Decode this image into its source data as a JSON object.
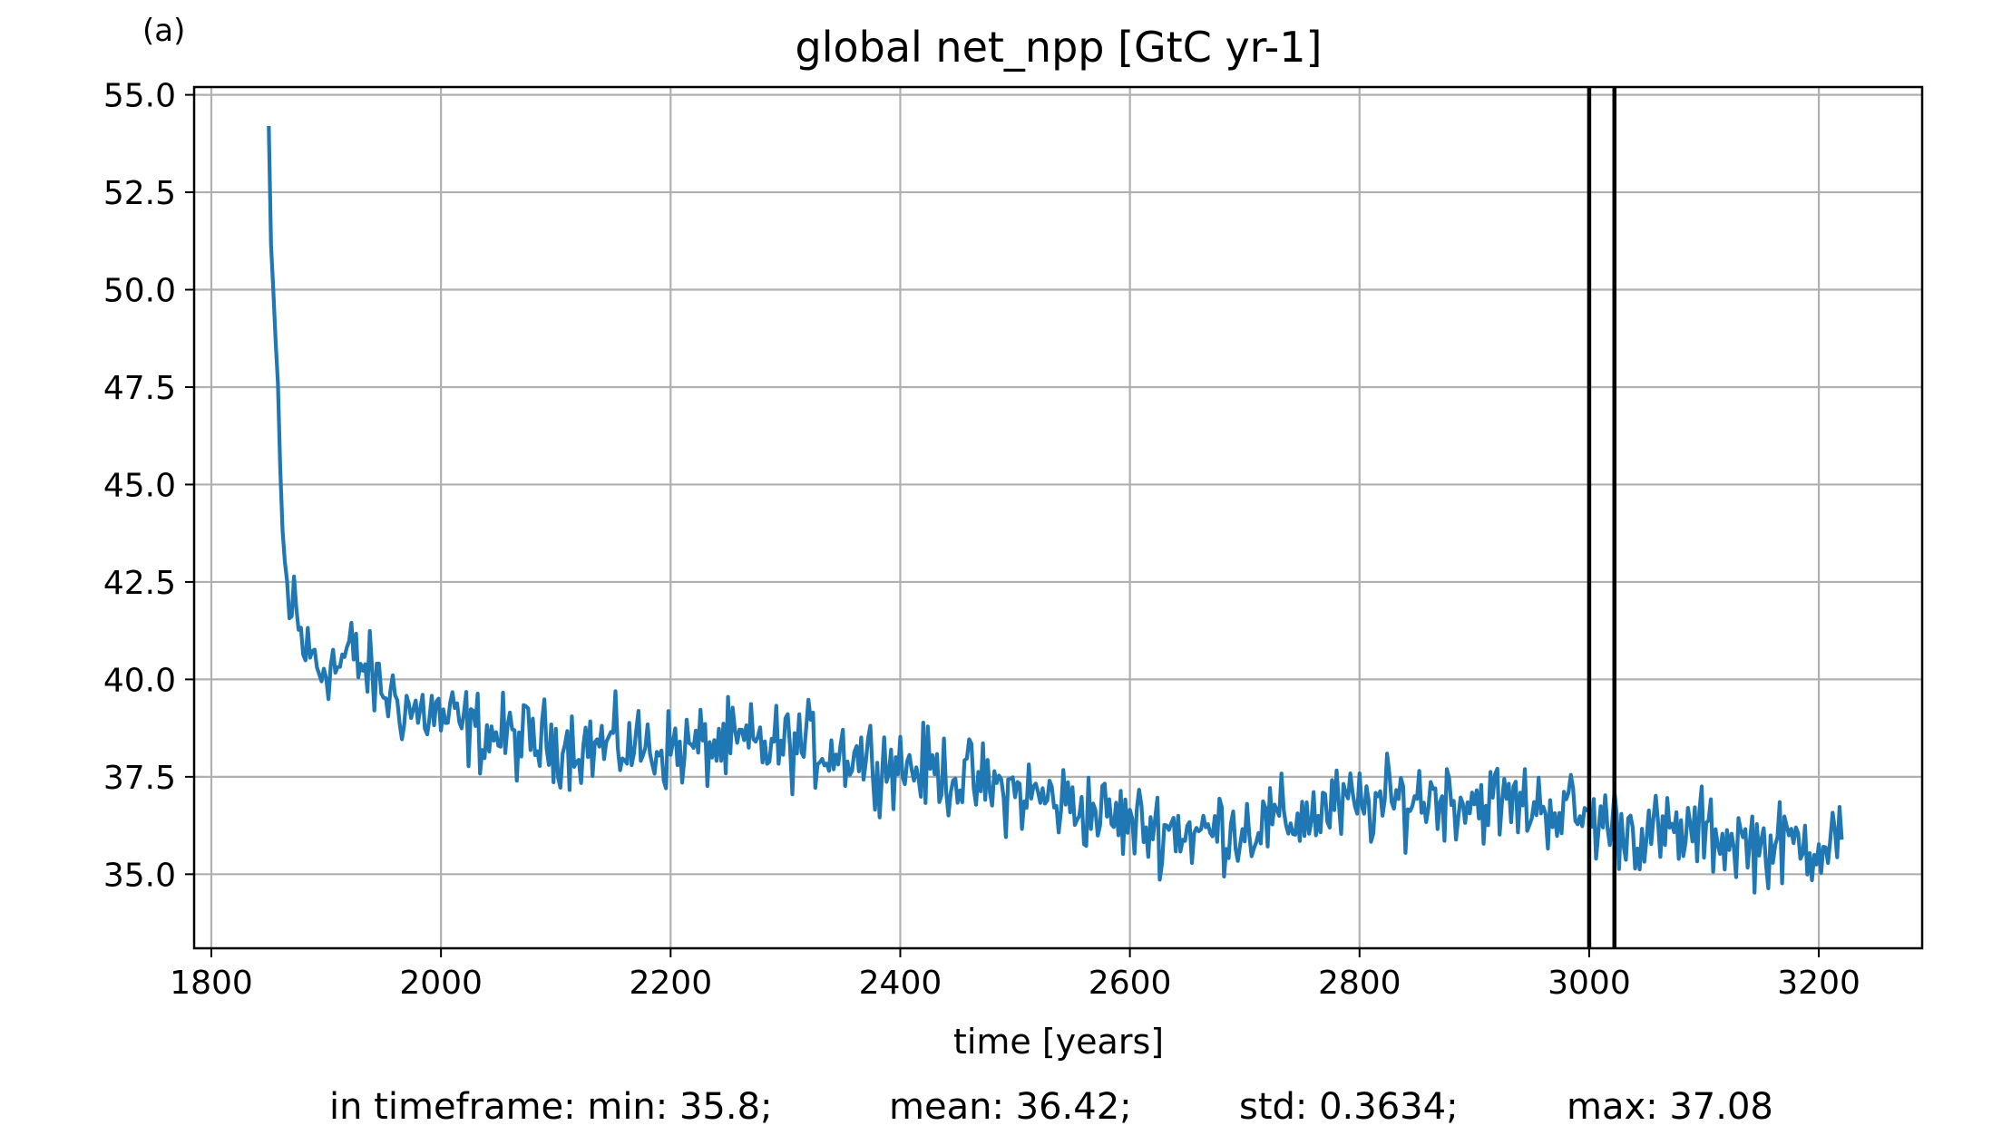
{
  "panel_label": "(a)",
  "stats": {
    "min": "in timeframe: min: 35.8;",
    "mean": "mean: 36.42;",
    "std": "std: 0.3634;",
    "max": "max: 37.08"
  },
  "colors": {
    "series": "#1f77b4",
    "grid": "#b0b0b0",
    "marker": "#000000"
  },
  "chart_data": {
    "type": "line",
    "title": "global net_npp [GtC yr-1]",
    "xlabel": "time [years]",
    "ylabel": "",
    "xlim": [
      1785,
      3290
    ],
    "ylim": [
      33.1,
      55.2
    ],
    "xticks": [
      1800,
      2000,
      2200,
      2400,
      2600,
      2800,
      3000,
      3200
    ],
    "xtick_labels": [
      "1800",
      "2000",
      "2200",
      "2400",
      "2600",
      "2800",
      "3000",
      "3200"
    ],
    "yticks": [
      35.0,
      37.5,
      40.0,
      42.5,
      45.0,
      47.5,
      50.0,
      52.5,
      55.0
    ],
    "ytick_labels": [
      "35.0",
      "37.5",
      "40.0",
      "42.5",
      "45.0",
      "47.5",
      "50.0",
      "52.5",
      "55.0"
    ],
    "grid": true,
    "vertical_markers": [
      3000,
      3022
    ],
    "series": [
      {
        "x": [
          1850,
          1851,
          1853,
          1855,
          1857,
          1859,
          1861,
          1863,
          1865,
          1868,
          1872,
          1876,
          1880,
          1885,
          1890,
          1895,
          1900,
          1905,
          1910,
          1920,
          1930,
          1940,
          1950,
          1960,
          1970,
          1980,
          1990,
          2000,
          2020,
          2040,
          2060,
          2080,
          2100,
          2130,
          2160,
          2200,
          2240,
          2280,
          2320,
          2360,
          2400,
          2440,
          2480,
          2520,
          2560,
          2600,
          2620,
          2640,
          2660,
          2680,
          2700,
          2740,
          2780,
          2820,
          2860,
          2900,
          2940,
          2970,
          2985,
          3000,
          3020,
          3040,
          3060,
          3080,
          3100,
          3120,
          3140,
          3160,
          3180,
          3200,
          3210,
          3220
        ],
        "y": [
          54.2,
          50.8,
          51.0,
          49.6,
          47.3,
          46.3,
          44.0,
          43.1,
          42.4,
          41.5,
          42.3,
          41.2,
          41.0,
          40.5,
          40.6,
          40.2,
          40.5,
          40.4,
          40.3,
          40.7,
          40.4,
          40.0,
          39.7,
          39.5,
          39.3,
          39.1,
          39.2,
          39.0,
          38.8,
          38.6,
          38.5,
          38.4,
          38.4,
          38.3,
          38.3,
          38.2,
          38.3,
          38.3,
          38.3,
          38.1,
          37.8,
          37.6,
          37.2,
          37.0,
          36.7,
          36.3,
          36.2,
          36.2,
          36.0,
          36.2,
          36.2,
          36.4,
          36.7,
          36.8,
          37.0,
          36.9,
          36.8,
          36.7,
          36.6,
          36.4,
          36.3,
          36.1,
          36.0,
          36.0,
          36.1,
          35.9,
          35.8,
          35.7,
          35.8,
          35.8,
          35.9,
          36.1
        ],
        "noise_amplitude": 0.8
      }
    ]
  }
}
